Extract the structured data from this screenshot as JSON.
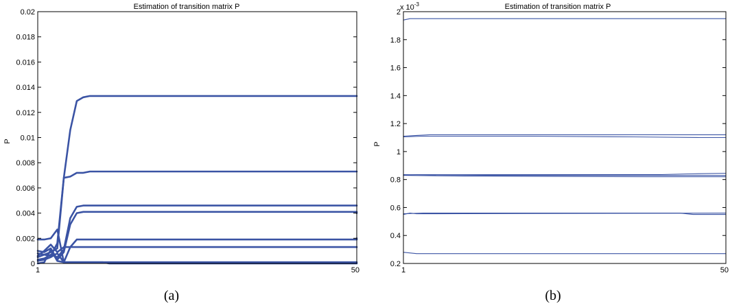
{
  "colors": {
    "series": "#3a53a4",
    "axis": "#000000",
    "background": "#ffffff"
  },
  "chart_data": [
    {
      "type": "line",
      "panel_label": "(a)",
      "title": "Estimation of transition matrix P",
      "xlabel": "",
      "ylabel": "P",
      "xlim": [
        1,
        50
      ],
      "ylim": [
        0,
        0.02
      ],
      "grid": false,
      "line_width": "thick",
      "x_tick_labels": [
        "1",
        "50"
      ],
      "x_tick_values": [
        1,
        50
      ],
      "y_tick_labels": [
        "0",
        "0.002",
        "0.004",
        "0.006",
        "0.008",
        "0.01",
        "0.012",
        "0.014",
        "0.016",
        "0.018",
        "0.02"
      ],
      "y_tick_values": [
        0,
        0.002,
        0.004,
        0.006,
        0.008,
        0.01,
        0.012,
        0.014,
        0.016,
        0.018,
        0.02
      ],
      "series": [
        {
          "points": [
            [
              1,
              0.0005
            ],
            [
              2,
              0.0007
            ],
            [
              3,
              0.0009
            ],
            [
              4,
              0.0012
            ],
            [
              5,
              0.0068
            ],
            [
              6,
              0.0106
            ],
            [
              7,
              0.0129
            ],
            [
              8,
              0.0132
            ],
            [
              9,
              0.0133
            ],
            [
              50,
              0.0133
            ]
          ]
        },
        {
          "points": [
            [
              1,
              0.0008
            ],
            [
              2,
              0.0007
            ],
            [
              3,
              0.0006
            ],
            [
              4,
              0.0016
            ],
            [
              5,
              0.0068
            ],
            [
              6,
              0.0069
            ],
            [
              7,
              0.0072
            ],
            [
              8,
              0.0072
            ],
            [
              9,
              0.0073
            ],
            [
              50,
              0.0073
            ]
          ]
        },
        {
          "points": [
            [
              1,
              0.0003
            ],
            [
              2,
              0.0004
            ],
            [
              3,
              0.0007
            ],
            [
              4,
              0.0005
            ],
            [
              5,
              0.0011
            ],
            [
              6,
              0.0036
            ],
            [
              7,
              0.0045
            ],
            [
              8,
              0.0046
            ],
            [
              50,
              0.0046
            ]
          ]
        },
        {
          "points": [
            [
              1,
              0.001
            ],
            [
              2,
              0.0009
            ],
            [
              3,
              0.0012
            ],
            [
              4,
              0.0003
            ],
            [
              5,
              0.0009
            ],
            [
              6,
              0.0031
            ],
            [
              7,
              0.004
            ],
            [
              8,
              0.0041
            ],
            [
              50,
              0.0041
            ],
            [
              50,
              0.004
            ]
          ]
        },
        {
          "points": [
            [
              1,
              0.0019
            ],
            [
              2,
              0.0019
            ],
            [
              3,
              0.002
            ],
            [
              4,
              0.0027
            ],
            [
              5,
              0.0001
            ],
            [
              6,
              0.0013
            ],
            [
              7,
              0.0019
            ],
            [
              8,
              0.0019
            ],
            [
              50,
              0.0019
            ],
            [
              50,
              0.002
            ]
          ]
        },
        {
          "points": [
            [
              1,
              0.0006
            ],
            [
              2,
              0.001
            ],
            [
              3,
              0.0015
            ],
            [
              4,
              0.0009
            ],
            [
              5,
              0.0013
            ],
            [
              6,
              0.0013
            ],
            [
              50,
              0.0013
            ]
          ]
        },
        {
          "points": [
            [
              1,
              0.0002
            ],
            [
              2,
              0.0003
            ],
            [
              3,
              0.0005
            ],
            [
              4,
              0.0008
            ],
            [
              5,
              0.0001
            ],
            [
              6,
              0.0001
            ],
            [
              7,
              0.0001
            ],
            [
              50,
              0.0001
            ]
          ]
        },
        {
          "points": [
            [
              1,
              0.0
            ],
            [
              2,
              0.0001
            ],
            [
              3,
              0.0011
            ],
            [
              4,
              0.0002
            ],
            [
              5,
              0.0001
            ],
            [
              7,
              0.0001
            ],
            [
              11,
              0.0001
            ],
            [
              12,
              0.0
            ],
            [
              50,
              0.0
            ]
          ]
        }
      ]
    },
    {
      "type": "line",
      "panel_label": "(b)",
      "title": "Estimation of transition matrix P",
      "xlabel": "",
      "ylabel": "P",
      "exponent_label": "x 10",
      "exponent_power": "-3",
      "xlim": [
        1,
        50
      ],
      "ylim": [
        0.2,
        2.0
      ],
      "grid": false,
      "line_width": "thin",
      "x_tick_labels": [
        "1",
        "50"
      ],
      "x_tick_values": [
        1,
        50
      ],
      "y_tick_labels": [
        "0.2",
        "0.4",
        "0.6",
        "0.8",
        "1",
        "1.2",
        "1.4",
        "1.6",
        "1.8",
        "2"
      ],
      "y_tick_values": [
        0.2,
        0.4,
        0.6,
        0.8,
        1.0,
        1.2,
        1.4,
        1.6,
        1.8,
        2.0
      ],
      "series": [
        {
          "points": [
            [
              1,
              1.94
            ],
            [
              2,
              1.95
            ],
            [
              50,
              1.95
            ]
          ]
        },
        {
          "points": [
            [
              1,
              1.11
            ],
            [
              3,
              1.115
            ],
            [
              5,
              1.12
            ],
            [
              50,
              1.12
            ]
          ]
        },
        {
          "points": [
            [
              1,
              1.105
            ],
            [
              4,
              1.11
            ],
            [
              20,
              1.11
            ],
            [
              36,
              1.105
            ],
            [
              46,
              1.1
            ],
            [
              50,
              1.1
            ]
          ]
        },
        {
          "points": [
            [
              1,
              0.83
            ],
            [
              3,
              0.835
            ],
            [
              40,
              0.835
            ],
            [
              44,
              0.84
            ],
            [
              50,
              0.845
            ]
          ]
        },
        {
          "points": [
            [
              1,
              0.835
            ],
            [
              15,
              0.83
            ],
            [
              40,
              0.83
            ],
            [
              50,
              0.83
            ]
          ]
        },
        {
          "points": [
            [
              1,
              0.83
            ],
            [
              10,
              0.825
            ],
            [
              38,
              0.82
            ],
            [
              50,
              0.82
            ]
          ]
        },
        {
          "points": [
            [
              1,
              0.55
            ],
            [
              2,
              0.56
            ],
            [
              3,
              0.555
            ],
            [
              50,
              0.56
            ]
          ]
        },
        {
          "points": [
            [
              1,
              0.555
            ],
            [
              4,
              0.56
            ],
            [
              43,
              0.56
            ],
            [
              45,
              0.55
            ],
            [
              50,
              0.55
            ]
          ]
        },
        {
          "points": [
            [
              1,
              0.28
            ],
            [
              3,
              0.27
            ],
            [
              50,
              0.27
            ]
          ]
        }
      ]
    }
  ]
}
